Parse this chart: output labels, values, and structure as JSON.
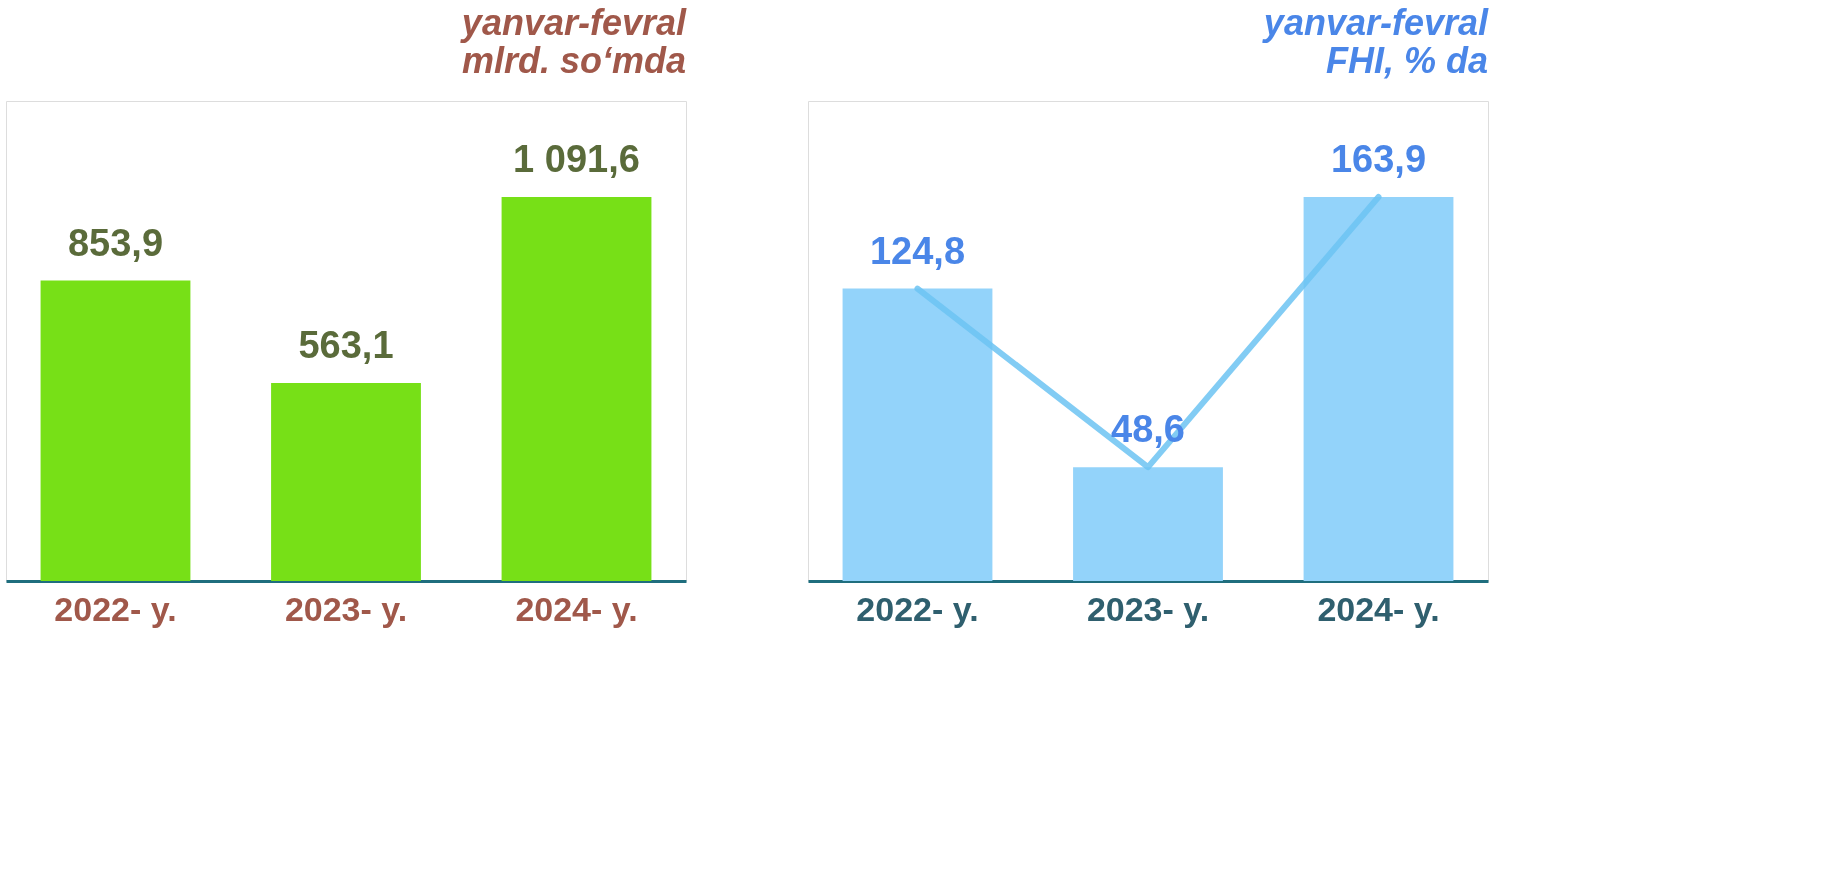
{
  "chart_data": [
    {
      "type": "bar",
      "title": "yanvar-fevral\nmlrd. so‘mda",
      "categories": [
        "2022- y.",
        "2023- y.",
        "2024- y."
      ],
      "series": [
        {
          "color": "#77e017",
          "values": [
            853.9,
            563.1,
            1091.6
          ],
          "value_labels": [
            "853,9",
            "563,1",
            "1 091,6"
          ]
        }
      ]
    },
    {
      "type": "bar",
      "title": "yanvar-fevral\nFHI, % da",
      "categories": [
        "2022- y.",
        "2023- y.",
        "2024- y."
      ],
      "series": [
        {
          "color": "#93d3fa",
          "values": [
            124.8,
            48.6,
            163.9
          ],
          "value_labels": [
            "124,8",
            "48,6",
            "163,9"
          ]
        },
        {
          "type": "line",
          "color": "#6cc3f2",
          "values": [
            124.8,
            48.6,
            163.9
          ]
        }
      ]
    }
  ]
}
